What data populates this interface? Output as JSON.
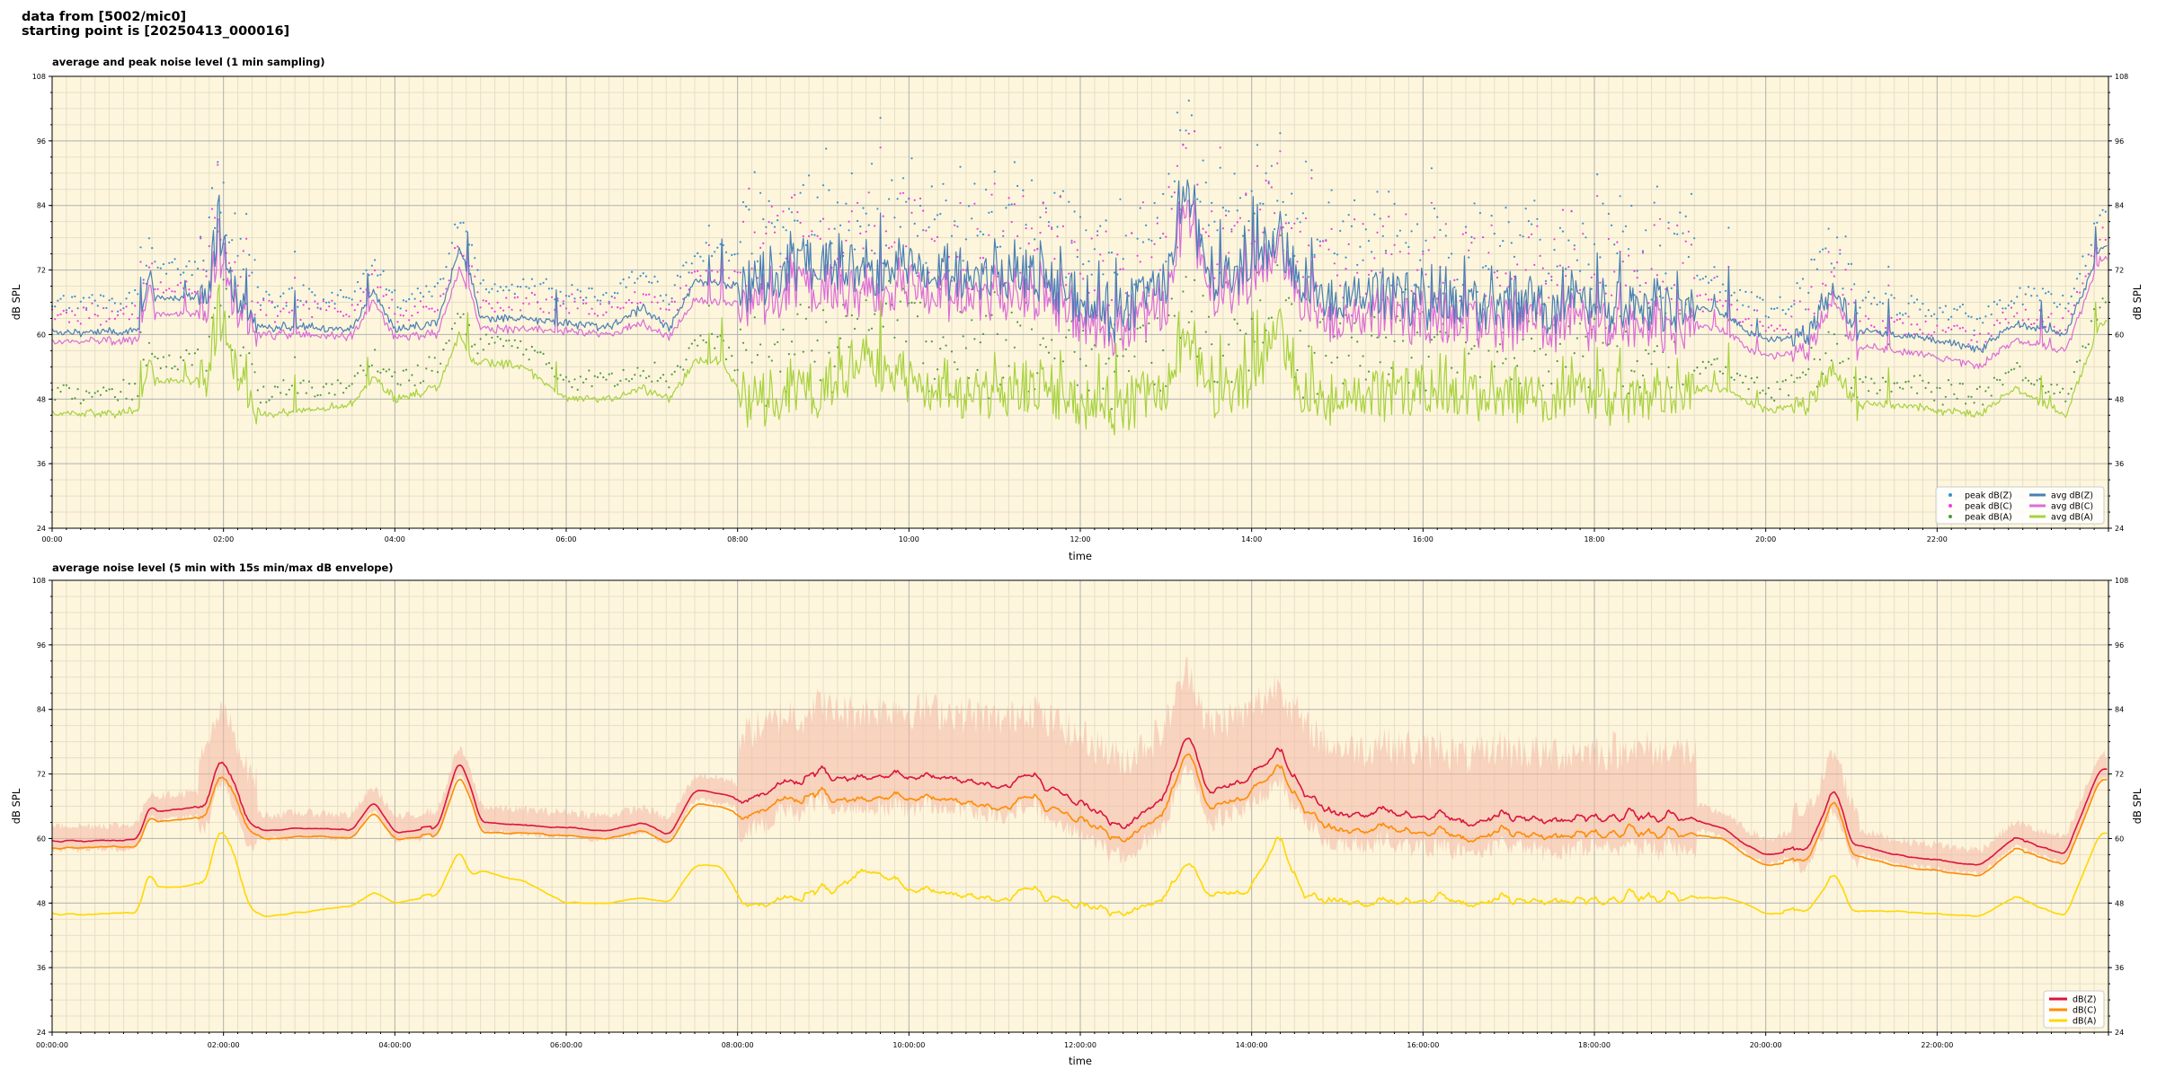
{
  "page": {
    "header_line1": "data from [5002/mic0]",
    "header_line2": "starting point is [20250413_000016]"
  },
  "colors": {
    "plot_bg": "#fdf6dc",
    "grid_major": "#b0b0b0",
    "grid_minor": "#e6dfc8",
    "top_peak_z": "#3a8fd0",
    "top_peak_c": "#ee3ce0",
    "top_peak_a": "#4e9a42",
    "top_avg_z": "#4a7fb5",
    "top_avg_c": "#dc6cd8",
    "top_avg_a": "#a8d23e",
    "bottom_z": "#dc143c",
    "bottom_c": "#ff8c00",
    "bottom_a": "#ffd700",
    "bottom_envelope": "#f4b6a6"
  },
  "chart_data": [
    {
      "type": "line",
      "title": "average and peak noise level (1 min sampling)",
      "xlabel": "time",
      "ylabel": "dB SPL",
      "ylim": [
        24,
        108
      ],
      "xlim_hours": [
        0,
        24
      ],
      "yticks": [
        "24",
        "36",
        "48",
        "60",
        "72",
        "84",
        "96",
        "108"
      ],
      "xticks": [
        "00:00",
        "02:00",
        "04:00",
        "06:00",
        "08:00",
        "10:00",
        "12:00",
        "14:00",
        "16:00",
        "18:00",
        "20:00",
        "22:00"
      ],
      "grid": true,
      "legend_position": "bottom-right",
      "legend": [
        "peak dB(Z)",
        "peak dB(C)",
        "peak dB(A)",
        "avg dB(Z)",
        "avg dB(C)",
        "avg dB(A)"
      ],
      "x_hours": [
        0,
        0.5,
        1.0,
        1.15,
        1.2,
        1.5,
        1.8,
        1.95,
        2.1,
        2.35,
        2.5,
        3.0,
        3.5,
        3.75,
        4.0,
        4.5,
        4.75,
        4.9,
        5.0,
        5.5,
        6.0,
        6.5,
        6.9,
        7.2,
        7.5,
        7.8,
        8.1,
        8.5,
        9.0,
        9.5,
        10.0,
        10.5,
        11.0,
        11.5,
        12.0,
        12.5,
        13.0,
        13.25,
        13.5,
        14.0,
        14.3,
        14.6,
        15.0,
        15.5,
        16.0,
        16.5,
        17.0,
        17.5,
        18.0,
        18.5,
        19.0,
        19.5,
        19.75,
        20.0,
        20.5,
        20.8,
        21.0,
        21.5,
        22.0,
        22.5,
        22.9,
        23.5,
        23.9
      ],
      "series": [
        {
          "name": "avg dB(Z)",
          "values": [
            60.5,
            60.4,
            60.6,
            72,
            66.5,
            67,
            67.5,
            78,
            69,
            62,
            61.5,
            61.5,
            61,
            68,
            61,
            62,
            76,
            70,
            63,
            63,
            62,
            61.5,
            65,
            61,
            70,
            69.5,
            69,
            72,
            74,
            72,
            73,
            72,
            71,
            72,
            66,
            63,
            70,
            86,
            70,
            74,
            78,
            70,
            66,
            67,
            66,
            65,
            66,
            65,
            66,
            65,
            66,
            64,
            61,
            59,
            60,
            70,
            61,
            60,
            59,
            57,
            62,
            60,
            76
          ]
        },
        {
          "name": "avg dB(C)",
          "values": [
            58.7,
            58.8,
            58.9,
            70,
            63.5,
            64,
            64.5,
            74,
            67,
            60,
            60,
            60,
            59.7,
            66,
            59.7,
            60,
            72,
            67,
            61,
            61,
            60.5,
            60,
            62,
            59.5,
            66.5,
            66,
            66,
            68,
            69,
            68,
            69,
            68,
            67,
            68,
            63,
            60,
            66,
            82,
            67,
            71,
            76,
            67,
            62,
            63,
            62,
            62,
            62,
            62,
            62,
            61,
            62,
            61,
            58,
            56,
            57,
            68,
            58,
            57,
            56,
            54,
            59,
            57,
            74
          ]
        },
        {
          "name": "avg dB(A)",
          "values": [
            45.5,
            45.3,
            45.6,
            56,
            51,
            51.5,
            52,
            62,
            56,
            46,
            45,
            46,
            47,
            52,
            48,
            50,
            60,
            55,
            55,
            54,
            48,
            48,
            50,
            48,
            55,
            55,
            48,
            49,
            50,
            56,
            52,
            50,
            49,
            51,
            47,
            46,
            50,
            58,
            49,
            52,
            62,
            49,
            48,
            48,
            49,
            48,
            49,
            48,
            49,
            48,
            50,
            50,
            48,
            46,
            47,
            55,
            47,
            47,
            46,
            45,
            50,
            45,
            62
          ]
        }
      ],
      "peak_series": [
        {
          "name": "peak dB(Z)",
          "offset_db": 4
        },
        {
          "name": "peak dB(C)",
          "offset_db": 3
        },
        {
          "name": "peak dB(A)",
          "offset_db": 2
        }
      ]
    },
    {
      "type": "line",
      "title": "average noise level (5 min with 15s min/max dB envelope)",
      "xlabel": "time",
      "ylabel": "dB SPL",
      "ylim": [
        24,
        108
      ],
      "xlim_hours": [
        0,
        24
      ],
      "yticks": [
        "24",
        "36",
        "48",
        "60",
        "72",
        "84",
        "96",
        "108"
      ],
      "xticks": [
        "00:00:00",
        "02:00:00",
        "04:00:00",
        "06:00:00",
        "08:00:00",
        "10:00:00",
        "12:00:00",
        "14:00:00",
        "16:00:00",
        "18:00:00",
        "20:00:00",
        "22:00:00"
      ],
      "grid": true,
      "legend_position": "bottom-right",
      "legend": [
        "dB(Z)",
        "dB(C)",
        "dB(A)"
      ],
      "x_hours": [
        0,
        0.5,
        1.0,
        1.15,
        1.2,
        1.5,
        1.8,
        1.95,
        2.1,
        2.35,
        2.5,
        3.0,
        3.5,
        3.75,
        4.0,
        4.5,
        4.75,
        4.9,
        5.0,
        5.5,
        6.0,
        6.5,
        6.9,
        7.2,
        7.5,
        7.8,
        8.1,
        8.5,
        9.0,
        9.5,
        10.0,
        10.5,
        11.0,
        11.5,
        12.0,
        12.5,
        13.0,
        13.25,
        13.5,
        14.0,
        14.3,
        14.6,
        15.0,
        15.5,
        16.0,
        16.5,
        17.0,
        17.5,
        18.0,
        18.5,
        19.0,
        19.5,
        19.75,
        20.0,
        20.5,
        20.8,
        21.0,
        21.5,
        22.0,
        22.5,
        22.9,
        23.5,
        23.9
      ],
      "series": [
        {
          "name": "dB(Z)",
          "values": [
            59.6,
            59.5,
            59.7,
            67,
            65,
            65.5,
            66,
            75,
            70,
            62,
            61.5,
            62,
            61.5,
            67,
            61,
            62,
            75,
            69,
            63,
            62.5,
            62,
            61.5,
            63,
            60.5,
            69,
            68.5,
            67,
            70,
            72,
            71,
            72,
            71,
            70,
            71,
            66,
            62,
            68,
            80,
            68,
            72,
            76,
            68,
            64,
            65,
            64,
            63,
            64,
            63,
            64,
            63,
            64,
            62,
            59,
            57,
            58,
            70,
            59,
            57,
            56,
            55,
            60,
            57,
            73
          ]
        },
        {
          "name": "dB(C)",
          "values": [
            58.2,
            58.3,
            58.4,
            65,
            63,
            63.5,
            64,
            72,
            68,
            60.5,
            60,
            60.5,
            60,
            65,
            59.8,
            60.5,
            72,
            67,
            61,
            61,
            60.5,
            60,
            61.5,
            59,
            66.5,
            66,
            64,
            67,
            68,
            67,
            68,
            67,
            66,
            67,
            63,
            59.5,
            65,
            77,
            65,
            69,
            73,
            65,
            61,
            62,
            61,
            60,
            61,
            60,
            61,
            60,
            61,
            60,
            57,
            55,
            56,
            68,
            57,
            55,
            54,
            53,
            58,
            55,
            71
          ]
        },
        {
          "name": "dB(A)",
          "values": [
            46,
            45.8,
            46.2,
            55,
            51,
            51,
            52,
            62,
            57,
            46,
            45.5,
            46.5,
            47.5,
            50,
            48,
            49.5,
            58,
            53,
            54,
            52,
            48,
            48,
            49,
            48,
            55,
            55,
            47.5,
            48.5,
            50,
            54,
            51,
            49.5,
            49,
            50,
            47,
            46,
            49,
            56,
            49,
            51,
            60,
            49,
            48,
            48,
            48.5,
            48,
            48.5,
            48,
            48.5,
            48,
            49,
            49,
            48,
            46,
            46.5,
            54,
            46.5,
            46.5,
            46,
            45.5,
            49,
            45.5,
            61
          ]
        }
      ],
      "envelope": {
        "name": "15s min/max envelope",
        "min_offset_db": 6,
        "max_offset_db": 14
      }
    }
  ]
}
